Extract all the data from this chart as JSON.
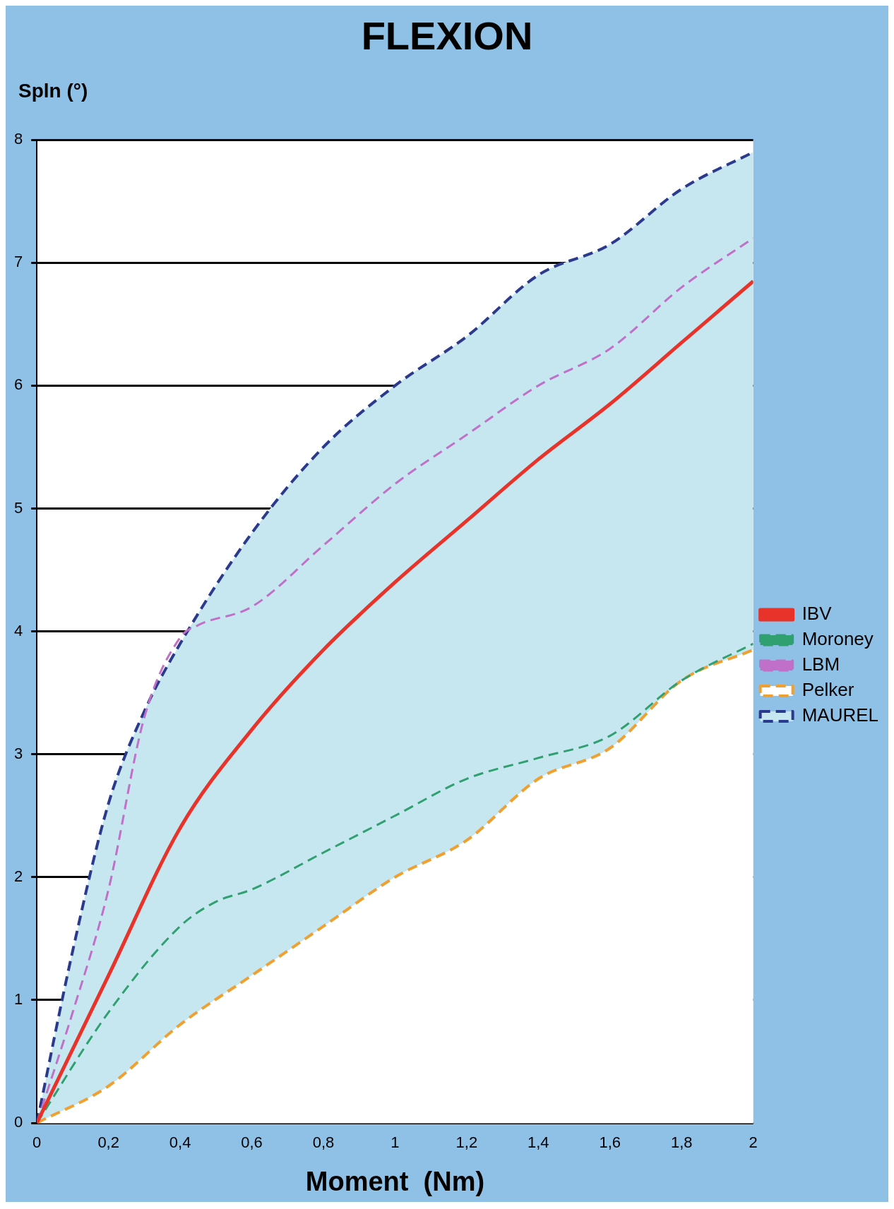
{
  "chart_data": {
    "type": "line",
    "title": "FLEXION",
    "xlabel": "Moment  (Nm)",
    "ylabel": "Spln (°)",
    "xlim": [
      0,
      2
    ],
    "ylim": [
      0,
      8
    ],
    "xticks": [
      0,
      {
        "value": 0.2,
        "label": "0,2"
      },
      {
        "value": 0.4,
        "label": "0,4"
      },
      {
        "value": 0.6,
        "label": "0,6"
      },
      {
        "value": 0.8,
        "label": "0,8"
      },
      1,
      {
        "value": 1.2,
        "label": "1,2"
      },
      {
        "value": 1.4,
        "label": "1,4"
      },
      {
        "value": 1.6,
        "label": "1,6"
      },
      {
        "value": 1.8,
        "label": "1,8"
      },
      2
    ],
    "yticks": [
      0,
      1,
      2,
      3,
      4,
      5,
      6,
      7,
      8
    ],
    "grid": "y",
    "legend": "right",
    "marker": "none",
    "series": [
      {
        "name": "MAUREL",
        "type": "area",
        "color": "#2b3a8c",
        "line_style": "dashed",
        "x": [
          0,
          0.1,
          0.2,
          0.3,
          0.4,
          0.6,
          0.8,
          1,
          1.2,
          1.4,
          1.6,
          1.8,
          2
        ],
        "values": [
          0,
          1.4,
          2.6,
          3.35,
          3.9,
          4.8,
          5.5,
          6,
          6.4,
          6.9,
          7.15,
          7.6,
          7.9
        ]
      },
      {
        "name": "Pelker",
        "type": "area",
        "color": "#f0a030",
        "line_style": "dashed",
        "x": [
          0,
          0.2,
          0.4,
          0.6,
          0.8,
          1,
          1.2,
          1.4,
          1.6,
          1.8,
          2
        ],
        "values": [
          0,
          0.3,
          0.8,
          1.2,
          1.6,
          2,
          2.3,
          2.8,
          3.05,
          3.6,
          3.85
        ]
      },
      {
        "name": "LBM",
        "color": "#c070c8",
        "line_style": "dashed",
        "x": [
          0,
          0.1,
          0.2,
          0.3,
          0.4,
          0.45,
          0.6,
          0.8,
          1,
          1.2,
          1.4,
          1.6,
          1.8,
          2
        ],
        "values": [
          0,
          0.9,
          1.9,
          3.3,
          3.95,
          4.05,
          4.2,
          4.7,
          5.2,
          5.6,
          6,
          6.3,
          6.8,
          7.2
        ]
      },
      {
        "name": "Moroney",
        "color": "#30a070",
        "line_style": "dashed",
        "x": [
          0,
          0.2,
          0.4,
          0.5,
          0.6,
          0.8,
          1,
          1.2,
          1.4,
          1.6,
          1.8,
          2
        ],
        "values": [
          0,
          0.9,
          1.6,
          1.8,
          1.9,
          2.2,
          2.5,
          2.8,
          2.97,
          3.15,
          3.6,
          3.9
        ]
      },
      {
        "name": "IBV",
        "color": "#e8332a",
        "line_style": "solid",
        "x": [
          0,
          0.2,
          0.4,
          0.6,
          0.8,
          1,
          1.2,
          1.4,
          1.6,
          1.8,
          2
        ],
        "values": [
          0,
          1.2,
          2.4,
          3.2,
          3.85,
          4.4,
          4.9,
          5.4,
          5.85,
          6.35,
          6.85
        ]
      }
    ]
  }
}
